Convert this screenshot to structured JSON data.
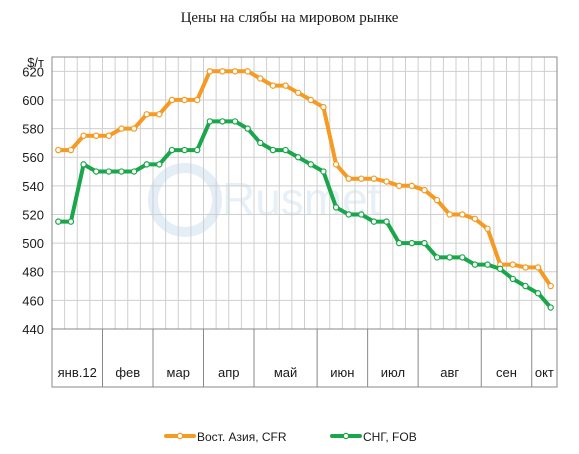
{
  "chart_data": {
    "type": "line",
    "title": "Цены на слябы на мировом рынке",
    "ylabel": "$/т",
    "xlabel": "",
    "ylim": [
      440,
      630
    ],
    "yticks": [
      440,
      460,
      480,
      500,
      520,
      540,
      560,
      580,
      600,
      620
    ],
    "grid": true,
    "legend_position": "bottom",
    "months": [
      "янв.12",
      "фев",
      "мар",
      "апр",
      "май",
      "июн",
      "июл",
      "авг",
      "сен",
      "окт"
    ],
    "month_week_counts": [
      4,
      4,
      4,
      4,
      5,
      4,
      4,
      5,
      4,
      2
    ],
    "colors": {
      "asia": "#f59a23",
      "cis": "#1aa64a"
    },
    "series": [
      {
        "name": "Вост. Азия, CFR",
        "color": "#f59a23",
        "values": [
          565,
          565,
          575,
          575,
          575,
          580,
          580,
          590,
          590,
          600,
          600,
          600,
          620,
          620,
          620,
          620,
          615,
          610,
          610,
          605,
          600,
          595,
          555,
          545,
          545,
          545,
          543,
          540,
          540,
          537,
          530,
          520,
          520,
          517,
          510,
          485,
          485,
          483,
          483,
          470
        ]
      },
      {
        "name": "СНГ, FOB",
        "color": "#1aa64a",
        "values": [
          515,
          515,
          555,
          550,
          550,
          550,
          550,
          555,
          555,
          565,
          565,
          565,
          585,
          585,
          585,
          580,
          570,
          565,
          565,
          560,
          555,
          550,
          525,
          520,
          520,
          515,
          515,
          500,
          500,
          500,
          490,
          490,
          490,
          485,
          485,
          482,
          475,
          470,
          465,
          455
        ]
      }
    ]
  },
  "watermark": "Rusmet"
}
